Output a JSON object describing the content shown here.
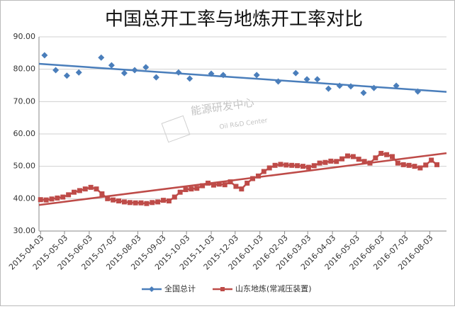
{
  "chart_data": {
    "type": "scatter-line",
    "title": "中国总开工率与地炼开工率对比",
    "annotations": [
      "能源研发中心",
      "Oil R&D Center"
    ],
    "xlim": [
      "2015-04-01",
      "2016-08-24"
    ],
    "xticks": [
      "2015-04-03",
      "2015-05-03",
      "2015-06-03",
      "2015-07-03",
      "2015-08-03",
      "2015-09-03",
      "2015-10-03",
      "2015-11-03",
      "2015-12-03",
      "2016-01-03",
      "2016-02-03",
      "2016-03-03",
      "2016-04-03",
      "2016-05-03",
      "2016-06-03",
      "2016-07-03",
      "2016-08-03"
    ],
    "ylim": [
      30,
      90
    ],
    "yticks": [
      {
        "value": 30,
        "label": "30.00"
      },
      {
        "value": 40,
        "label": "40.00"
      },
      {
        "value": 50,
        "label": "50.00"
      },
      {
        "value": 60,
        "label": "60.00"
      },
      {
        "value": 70,
        "label": "70.00"
      },
      {
        "value": 80,
        "label": "80.00"
      },
      {
        "value": 90,
        "label": "90.00"
      }
    ],
    "grid": true,
    "trendline": true,
    "legend": "bottom",
    "series": [
      {
        "name": "全国总计",
        "color": "#4a7ebb",
        "marker": "diamond",
        "line": false,
        "x": [
          "2015-04-08",
          "2015-04-22",
          "2015-05-06",
          "2015-05-21",
          "2015-06-18",
          "2015-07-01",
          "2015-07-17",
          "2015-07-30",
          "2015-08-13",
          "2015-08-26",
          "2015-09-23",
          "2015-10-07",
          "2015-11-03",
          "2015-11-18",
          "2015-12-30",
          "2016-01-26",
          "2016-02-17",
          "2016-03-02",
          "2016-03-15",
          "2016-03-29",
          "2016-04-12",
          "2016-04-26",
          "2016-05-12",
          "2016-05-25",
          "2016-06-22",
          "2016-07-19"
        ],
        "values": [
          84.3,
          79.7,
          78.0,
          79.0,
          83.6,
          81.2,
          78.8,
          79.7,
          80.6,
          77.5,
          79.0,
          77.1,
          78.6,
          78.2,
          78.2,
          76.2,
          78.8,
          76.9,
          76.9,
          74.0,
          74.9,
          74.7,
          72.7,
          74.2,
          74.9,
          73.1
        ]
      },
      {
        "name": "山东地炼(常减压装置)",
        "color": "#be4b48",
        "marker": "square",
        "line": true,
        "x": [
          "2015-04-03",
          "2015-04-10",
          "2015-04-17",
          "2015-04-24",
          "2015-05-01",
          "2015-05-08",
          "2015-05-15",
          "2015-05-22",
          "2015-05-29",
          "2015-06-05",
          "2015-06-12",
          "2015-06-19",
          "2015-06-26",
          "2015-07-03",
          "2015-07-10",
          "2015-07-17",
          "2015-07-24",
          "2015-07-31",
          "2015-08-07",
          "2015-08-14",
          "2015-08-21",
          "2015-08-28",
          "2015-09-04",
          "2015-09-11",
          "2015-09-18",
          "2015-09-25",
          "2015-10-02",
          "2015-10-09",
          "2015-10-16",
          "2015-10-23",
          "2015-10-30",
          "2015-11-06",
          "2015-11-13",
          "2015-11-20",
          "2015-11-27",
          "2015-12-04",
          "2015-12-11",
          "2015-12-18",
          "2015-12-25",
          "2016-01-01",
          "2016-01-08",
          "2016-01-15",
          "2016-01-22",
          "2016-01-29",
          "2016-02-05",
          "2016-02-12",
          "2016-02-19",
          "2016-02-26",
          "2016-03-04",
          "2016-03-11",
          "2016-03-18",
          "2016-03-25",
          "2016-04-01",
          "2016-04-08",
          "2016-04-15",
          "2016-04-22",
          "2016-04-29",
          "2016-05-06",
          "2016-05-13",
          "2016-05-20",
          "2016-05-27",
          "2016-06-03",
          "2016-06-10",
          "2016-06-17",
          "2016-06-24",
          "2016-07-01",
          "2016-07-08",
          "2016-07-15",
          "2016-07-22",
          "2016-07-29",
          "2016-08-05",
          "2016-08-12"
        ],
        "values": [
          39.7,
          39.6,
          39.9,
          40.2,
          40.5,
          41.2,
          42,
          42.5,
          43,
          43.5,
          43,
          41.5,
          40,
          39.6,
          39.3,
          39,
          38.8,
          38.7,
          38.7,
          38.5,
          38.8,
          39,
          39.5,
          39.3,
          40.5,
          42,
          42.8,
          43,
          43.2,
          44,
          44.8,
          44.2,
          44.5,
          44.3,
          45.2,
          43.8,
          43,
          44.8,
          46.2,
          47,
          48.4,
          49.5,
          50.3,
          50.6,
          50.4,
          50.3,
          50.2,
          50,
          49.7,
          50.2,
          51,
          51.2,
          51.6,
          51.5,
          52.3,
          53.2,
          53,
          52.2,
          51.5,
          51,
          52.6,
          54,
          53.6,
          53,
          51,
          50.5,
          50.3,
          50,
          49.5,
          50.4,
          51.9,
          50.5
        ]
      }
    ]
  }
}
